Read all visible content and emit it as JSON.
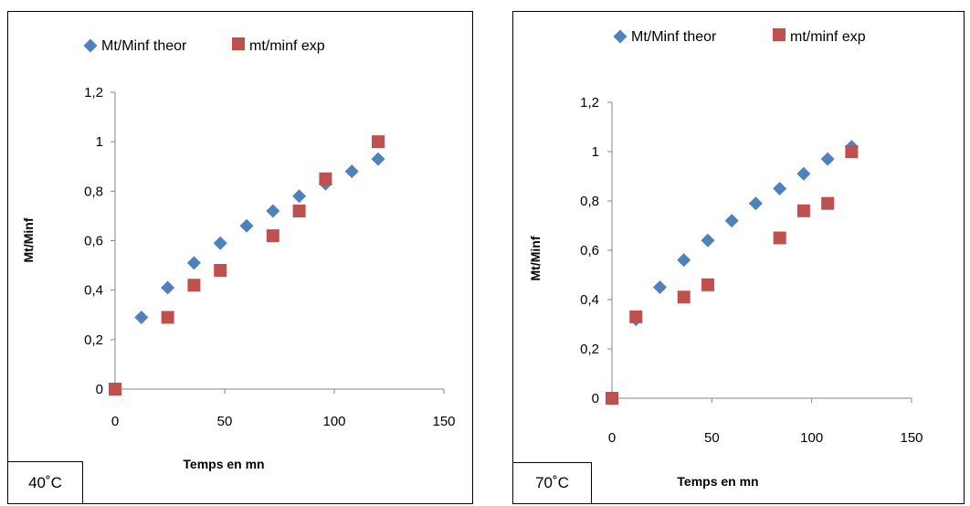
{
  "colors": {
    "theor": "#4F81BD",
    "exp": "#C0504D"
  },
  "chart_data": [
    {
      "type": "scatter",
      "panel_label": "40˚C",
      "xlabel": "Temps en mn",
      "ylabel": "Mt/Minf",
      "xlim": [
        0,
        150
      ],
      "ylim": [
        0,
        1.2
      ],
      "xticks": [
        "0",
        "50",
        "100",
        "150"
      ],
      "yticks": [
        "0",
        "0,2",
        "0,4",
        "0,6",
        "0,8",
        "1",
        "1,2"
      ],
      "legend_position": "top",
      "series": [
        {
          "name": "Mt/Minf theor",
          "marker": "diamond",
          "x": [
            0,
            12,
            24,
            36,
            48,
            60,
            72,
            84,
            96,
            108,
            120
          ],
          "y": [
            0,
            0.29,
            0.41,
            0.51,
            0.59,
            0.66,
            0.72,
            0.78,
            0.83,
            0.88,
            0.93
          ]
        },
        {
          "name": "mt/minf exp",
          "marker": "square",
          "x": [
            0,
            24,
            36,
            48,
            72,
            84,
            96,
            120
          ],
          "y": [
            0,
            0.29,
            0.42,
            0.48,
            0.62,
            0.72,
            0.85,
            1.0
          ]
        }
      ]
    },
    {
      "type": "scatter",
      "panel_label": "70˚C",
      "xlabel": "Temps en mn",
      "ylabel": "Mt/Minf",
      "xlim": [
        0,
        150
      ],
      "ylim": [
        0,
        1.2
      ],
      "xticks": [
        "0",
        "50",
        "100",
        "150"
      ],
      "yticks": [
        "0",
        "0,2",
        "0,4",
        "0,6",
        "0,8",
        "1",
        "1,2"
      ],
      "legend_position": "top",
      "series": [
        {
          "name": "Mt/Minf theor",
          "marker": "diamond",
          "x": [
            0,
            12,
            24,
            36,
            48,
            60,
            72,
            84,
            96,
            108,
            120
          ],
          "y": [
            0,
            0.32,
            0.45,
            0.56,
            0.64,
            0.72,
            0.79,
            0.85,
            0.91,
            0.97,
            1.02
          ]
        },
        {
          "name": "mt/minf exp",
          "marker": "square",
          "x": [
            0,
            12,
            36,
            48,
            84,
            96,
            108,
            120
          ],
          "y": [
            0,
            0.33,
            0.41,
            0.46,
            0.65,
            0.76,
            0.79,
            1.0
          ]
        }
      ]
    }
  ]
}
